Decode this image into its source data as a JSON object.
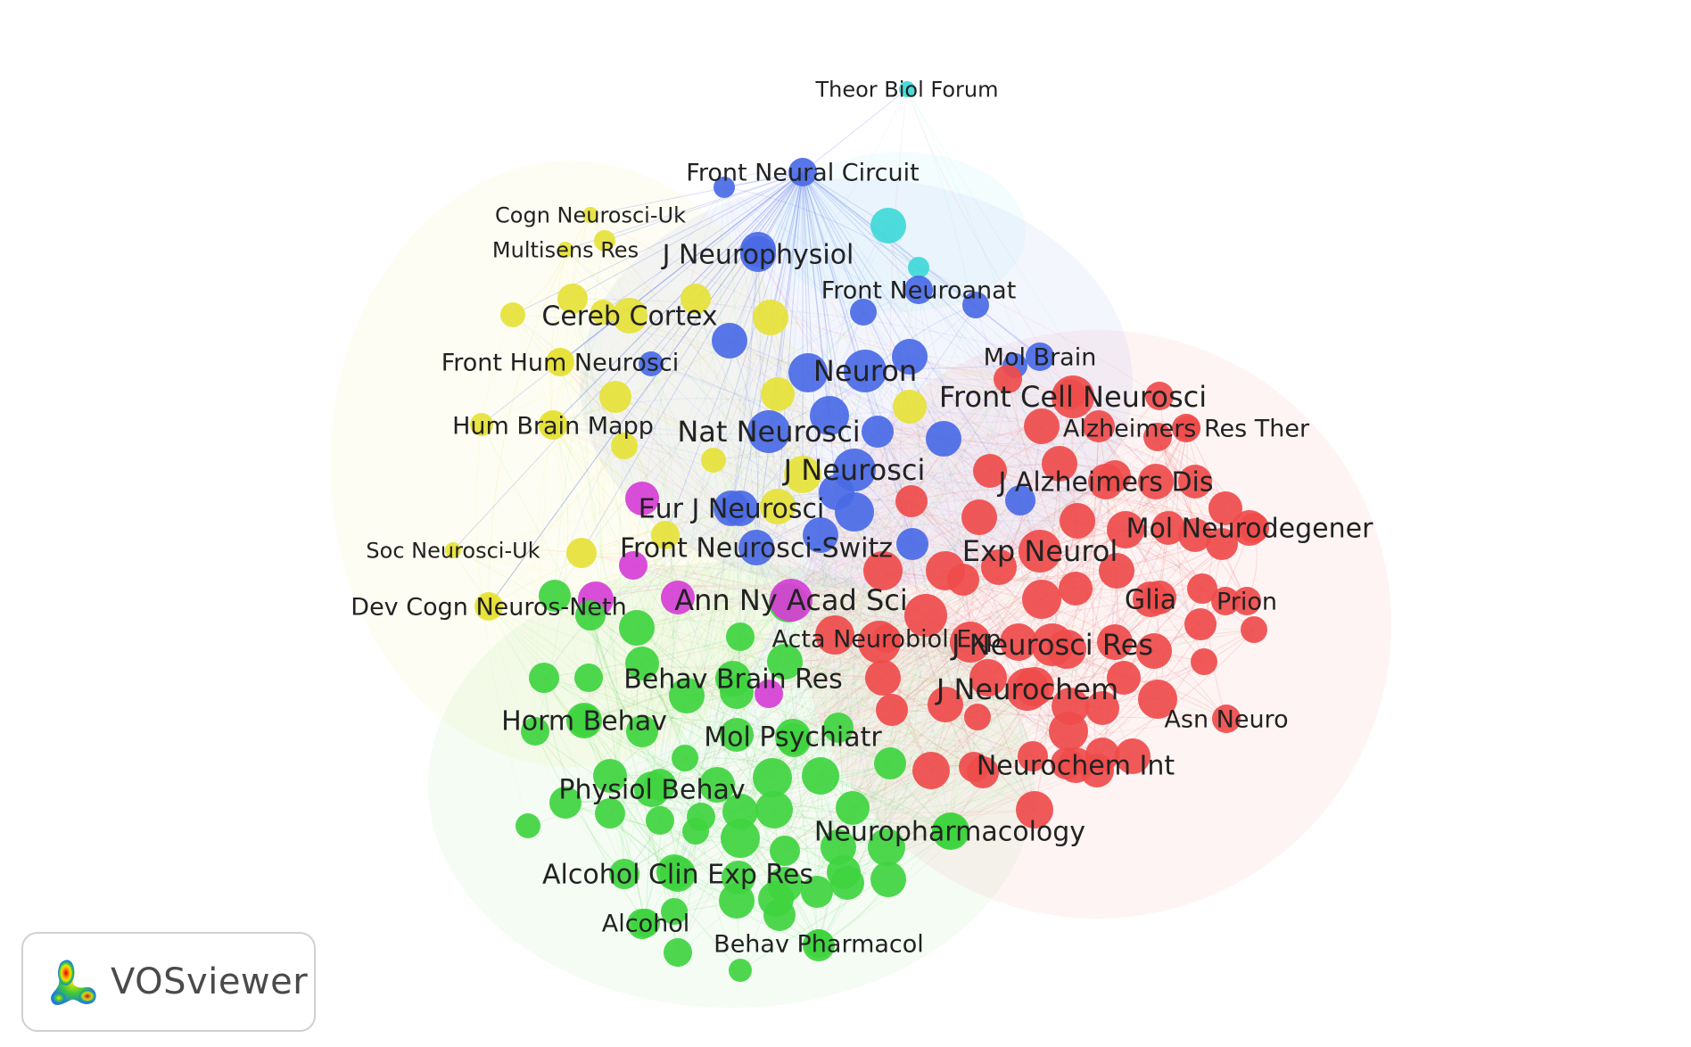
{
  "app": {
    "name": "VOSviewer"
  },
  "clusters": {
    "red": "#ef4b4b",
    "green": "#3fd43f",
    "blue": "#4a6ae6",
    "yellow": "#e6e23a",
    "purple": "#d63fd6",
    "cyan": "#3fd8d8"
  },
  "network": {
    "labels": [
      {
        "text": "Theor Biol Forum",
        "cluster": "cyan",
        "weight": 1
      },
      {
        "text": "Front Neural Circuit",
        "cluster": "blue",
        "weight": 2
      },
      {
        "text": "Cogn Neurosci-Uk",
        "cluster": "yellow",
        "weight": 1
      },
      {
        "text": "Multisens Res",
        "cluster": "yellow",
        "weight": 1
      },
      {
        "text": "J Neurophysiol",
        "cluster": "blue",
        "weight": 3
      },
      {
        "text": "Front Neuroanat",
        "cluster": "blue",
        "weight": 2
      },
      {
        "text": "Cereb Cortex",
        "cluster": "yellow",
        "weight": 3
      },
      {
        "text": "Front Hum Neurosci",
        "cluster": "yellow",
        "weight": 2
      },
      {
        "text": "Mol Brain",
        "cluster": "blue",
        "weight": 2
      },
      {
        "text": "Neuron",
        "cluster": "blue",
        "weight": 4
      },
      {
        "text": "Front Cell Neurosci",
        "cluster": "red",
        "weight": 4
      },
      {
        "text": "Hum Brain Mapp",
        "cluster": "yellow",
        "weight": 2
      },
      {
        "text": "Alzheimers Res Ther",
        "cluster": "red",
        "weight": 2
      },
      {
        "text": "Nat Neurosci",
        "cluster": "blue",
        "weight": 4
      },
      {
        "text": "J Neurosci",
        "cluster": "blue",
        "weight": 4
      },
      {
        "text": "J Alzheimers Dis",
        "cluster": "red",
        "weight": 3
      },
      {
        "text": "Eur J Neurosci",
        "cluster": "blue",
        "weight": 3
      },
      {
        "text": "Mol Neurodegener",
        "cluster": "red",
        "weight": 3
      },
      {
        "text": "Soc Neurosci-Uk",
        "cluster": "yellow",
        "weight": 1
      },
      {
        "text": "Front Neurosci-Switz",
        "cluster": "blue",
        "weight": 3
      },
      {
        "text": "Exp Neurol",
        "cluster": "red",
        "weight": 4
      },
      {
        "text": "Glia",
        "cluster": "red",
        "weight": 3
      },
      {
        "text": "Prion",
        "cluster": "red",
        "weight": 2
      },
      {
        "text": "Dev Cogn Neuros-Neth",
        "cluster": "yellow",
        "weight": 2
      },
      {
        "text": "Ann Ny Acad Sci",
        "cluster": "purple",
        "weight": 4
      },
      {
        "text": "Acta Neurobiol Exp",
        "cluster": "red",
        "weight": 2
      },
      {
        "text": "J Neurosci Res",
        "cluster": "red",
        "weight": 4
      },
      {
        "text": "Behav Brain Res",
        "cluster": "green",
        "weight": 3
      },
      {
        "text": "J Neurochem",
        "cluster": "red",
        "weight": 4
      },
      {
        "text": "Horm Behav",
        "cluster": "green",
        "weight": 3
      },
      {
        "text": "Asn Neuro",
        "cluster": "red",
        "weight": 2
      },
      {
        "text": "Mol Psychiatr",
        "cluster": "green",
        "weight": 3
      },
      {
        "text": "Neurochem Int",
        "cluster": "red",
        "weight": 3
      },
      {
        "text": "Physiol Behav",
        "cluster": "green",
        "weight": 3
      },
      {
        "text": "Neuropharmacology",
        "cluster": "green",
        "weight": 3
      },
      {
        "text": "Alcohol Clin Exp Res",
        "cluster": "green",
        "weight": 3
      },
      {
        "text": "Alcohol",
        "cluster": "green",
        "weight": 2
      },
      {
        "text": "Behav Pharmacol",
        "cluster": "green",
        "weight": 2
      }
    ]
  }
}
